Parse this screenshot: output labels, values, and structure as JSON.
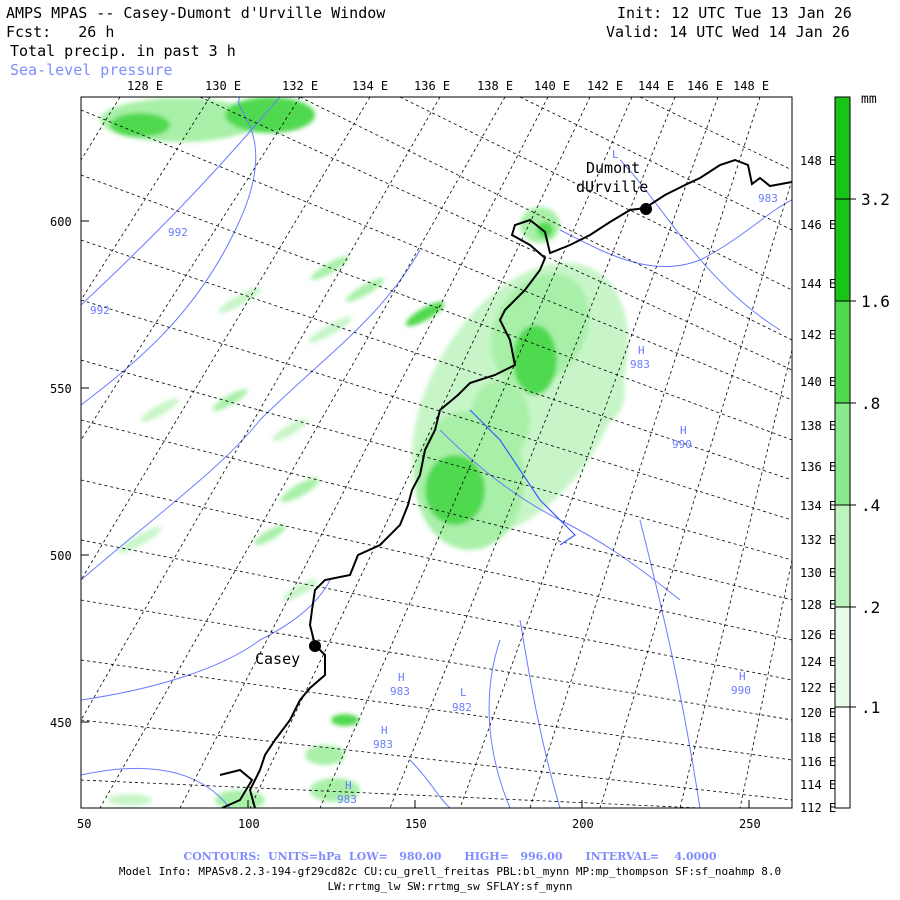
{
  "header": {
    "title": "AMPS MPAS -- Casey-Dumont d'Urville Window",
    "fcst_label": "Fcst:",
    "fcst_value": "26 h",
    "field": "Total precip. in past 3 h",
    "overlay": "Sea-level pressure",
    "init": "Init: 12 UTC Tue 13 Jan 26",
    "valid": "Valid: 14 UTC Wed 14 Jan 26"
  },
  "colors": {
    "precip_light": "#e6fce6",
    "precip_mid": "#a8f0a8",
    "precip_dark": "#4fd94f",
    "precip_max": "#18c418",
    "contour": "#6a7cff",
    "coast": "#000000"
  },
  "map": {
    "top_lon_labels": [
      "128 E",
      "130 E",
      "132 E",
      "134 E",
      "136 E",
      "138 E",
      "140 E",
      "142 E",
      "144 E",
      "146 E",
      "148 E"
    ],
    "right_lat_labels": [
      "148 E",
      "146 E",
      "144 E",
      "142 E",
      "140 E",
      "138 E",
      "136 E",
      "134 E",
      "132 E",
      "130 E",
      "128 E",
      "126 E",
      "124 E",
      "122 E",
      "120 E",
      "118 E",
      "116 E",
      "114 E",
      "112 E"
    ],
    "x_ticks": [
      "50",
      "100",
      "150",
      "200",
      "250"
    ],
    "y_ticks": [
      "600",
      "550",
      "500",
      "450"
    ],
    "stations": [
      {
        "name_line1": "Dumont",
        "name_line2": "dUrville"
      },
      {
        "name_line1": "Casey",
        "name_line2": ""
      }
    ],
    "pressure_labels": [
      {
        "letter": "",
        "value": "992"
      },
      {
        "letter": "",
        "value": "992"
      },
      {
        "letter": "L",
        "value": "983"
      },
      {
        "letter": "H",
        "value": "983"
      },
      {
        "letter": "H",
        "value": "990"
      },
      {
        "letter": "H",
        "value": "983"
      },
      {
        "letter": "L",
        "value": "982"
      },
      {
        "letter": "H",
        "value": "983"
      },
      {
        "letter": "H",
        "value": "983"
      },
      {
        "letter": "H",
        "value": "990"
      }
    ]
  },
  "colorbar": {
    "unit": "mm",
    "levels": [
      "3.2",
      "1.6",
      ".8",
      ".4",
      ".2",
      ".1"
    ]
  },
  "footer": {
    "contours": "CONTOURS:  UNITS=hPa  LOW=   980.00      HIGH=   996.00      INTERVAL=    4.0000",
    "model_info": "Model Info: MPASv8.2.3-194-gf29cd82c CU:cu_grell_freitas PBL:bl_mynn MP:mp_thompson SF:sf_noahmp 8.0",
    "model_info_2": "LW:rrtmg_lw SW:rrtmg_sw SFLAY:sf_mynn"
  }
}
